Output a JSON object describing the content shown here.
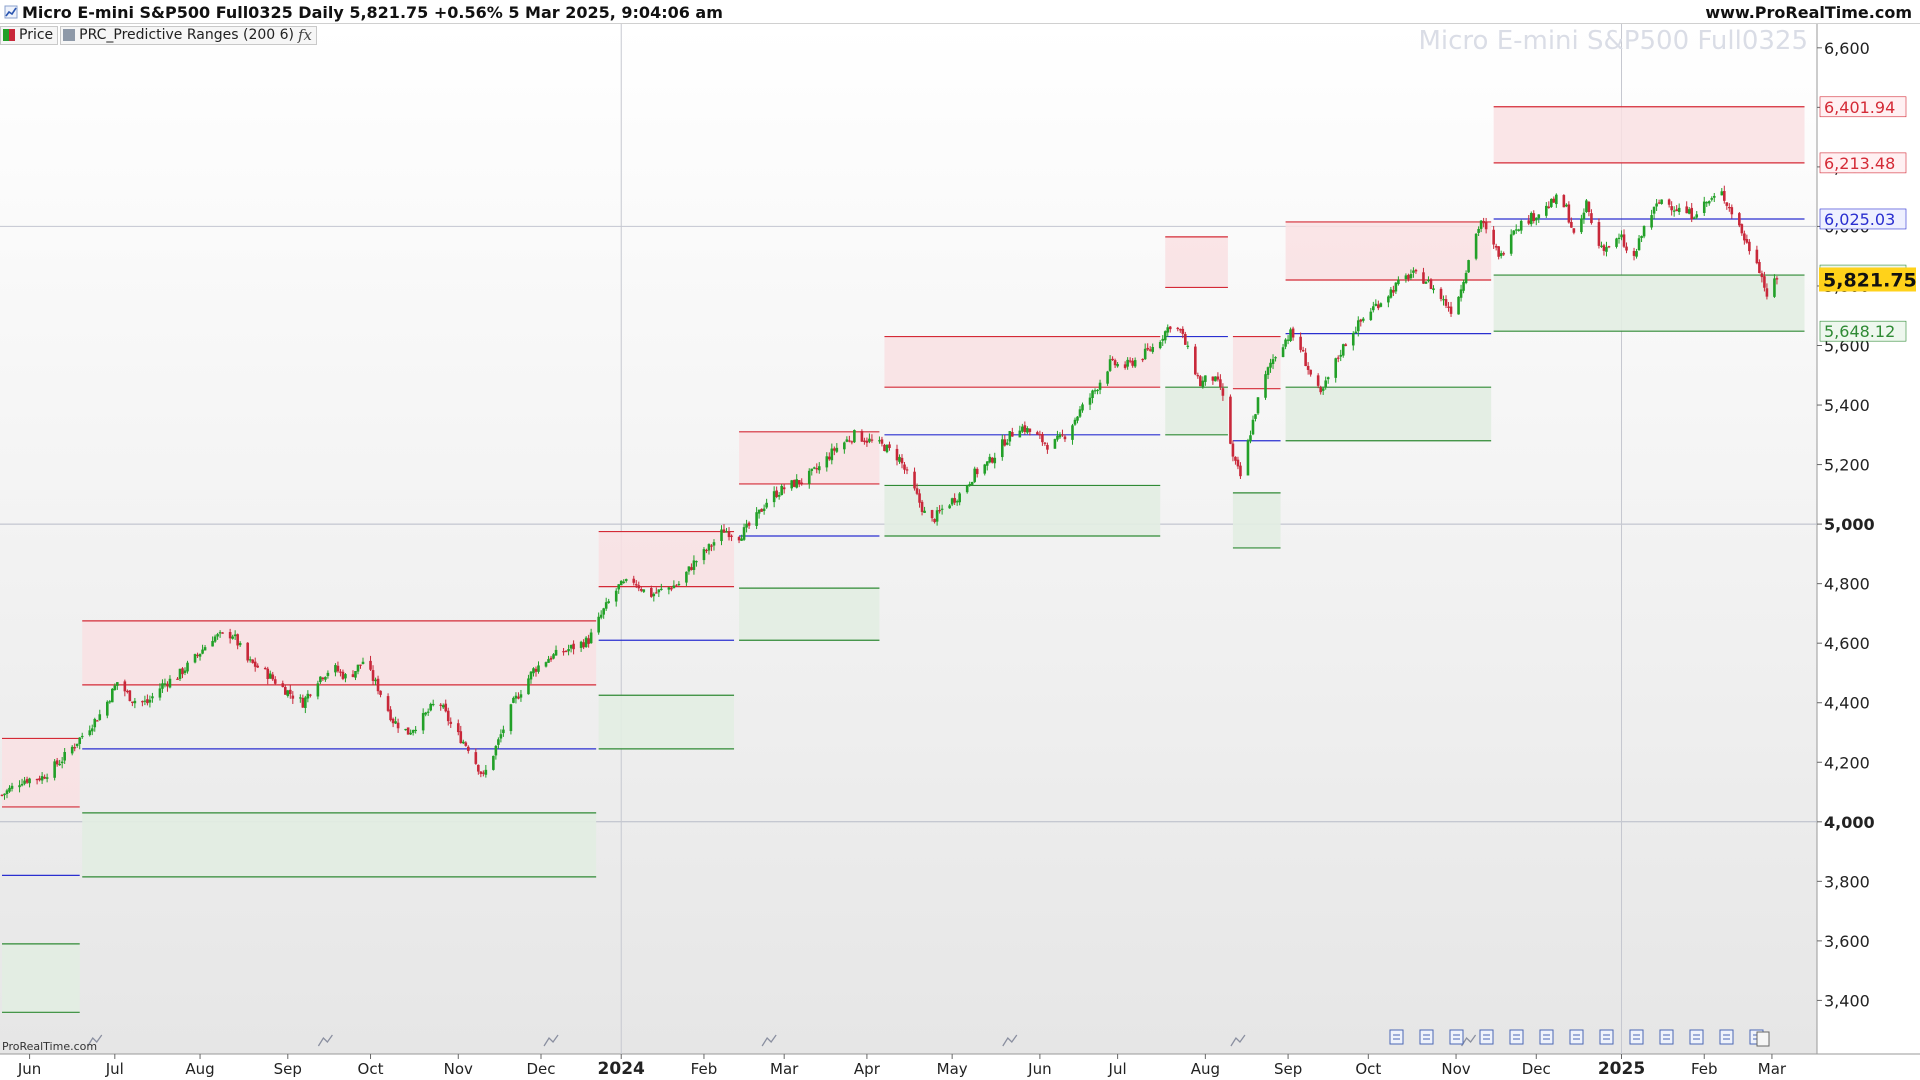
{
  "header": {
    "title": "Micro E-mini S&P500 Full0325 Daily 5,821.75 +0.56% 5 Mar 2025, 9:04:06 am",
    "site": "www.ProRealTime.com"
  },
  "legend": [
    {
      "label": "Price",
      "icon": "price-swatch-icon"
    },
    {
      "label": "PRC_Predictive Ranges (200 6)",
      "icon": "indicator-swatch-icon",
      "fx": "fx"
    }
  ],
  "watermark": "Micro E-mini S&P500 Full0325",
  "logo": "ProRealTime.com",
  "colors": {
    "up": "#22a028",
    "down": "#c8283a",
    "red_zone": "#f9e0e3",
    "green_zone": "#e2ede2",
    "red_line": "#d42a36",
    "green_line": "#2f8a34",
    "blue_line": "#2a2fd0",
    "price_tag": "#ffd21a"
  },
  "chart_data": {
    "type": "candlestick",
    "y_ticks": [
      "3,400",
      "3,600",
      "3,800",
      "4,000",
      "4,200",
      "4,400",
      "4,600",
      "4,800",
      "5,000",
      "5,200",
      "5,400",
      "5,600",
      "5,800",
      "6,000",
      "6,200",
      "6,400",
      "6,600"
    ],
    "y_tick_values": [
      3400,
      3600,
      3800,
      4000,
      4200,
      4400,
      4600,
      4800,
      5000,
      5200,
      5400,
      5600,
      5800,
      6000,
      6200,
      6400,
      6600
    ],
    "bold_ticks": [
      "4,000",
      "5,000"
    ],
    "ylim": [
      3220,
      6680
    ],
    "x_ticks": [
      "Jun",
      "Jul",
      "Aug",
      "Sep",
      "Oct",
      "Nov",
      "Dec",
      "2024",
      "Feb",
      "Mar",
      "Apr",
      "May",
      "Jun",
      "Jul",
      "Aug",
      "Sep",
      "Oct",
      "Nov",
      "Dec",
      "2025",
      "Feb",
      "Mar"
    ],
    "bold_x_ticks": [
      "2024",
      "2025"
    ],
    "x_tick_days": [
      11,
      45,
      79,
      114,
      147,
      182,
      215,
      247,
      280,
      312,
      345,
      379,
      414,
      445,
      480,
      513,
      545,
      580,
      612,
      646,
      679,
      706
    ],
    "x_range": [
      0,
      716
    ],
    "level_tags": [
      {
        "label": "6,401.94",
        "value": 6401.94,
        "kind": "red"
      },
      {
        "label": "6,213.48",
        "value": 6213.48,
        "kind": "red"
      },
      {
        "label": "6,025.03",
        "value": 6025.03,
        "kind": "blue"
      },
      {
        "label": "5,836.58",
        "value": 5836.58,
        "kind": "green"
      },
      {
        "label": "5,648.12",
        "value": 5648.12,
        "kind": "green"
      }
    ],
    "last_price": {
      "label": "5,821.75",
      "value": 5821.75
    },
    "predictive_ranges": [
      {
        "x0": 0,
        "x1": 31,
        "r2": 4280,
        "r1": 4050,
        "avg": 3820,
        "s1": 3590,
        "s2": 3360
      },
      {
        "x0": 32,
        "x1": 237,
        "r2": 4675,
        "r1": 4460,
        "avg": 4245,
        "s1": 4030,
        "s2": 3815
      },
      {
        "x0": 238,
        "x1": 292,
        "r2": 4975,
        "r1": 4790,
        "avg": 4610,
        "s1": 4425,
        "s2": 4245
      },
      {
        "x0": 294,
        "x1": 350,
        "r2": 5310,
        "r1": 5135,
        "avg": 4960,
        "s1": 4785,
        "s2": 4610
      },
      {
        "x0": 352,
        "x1": 462,
        "r2": 5630,
        "r1": 5460,
        "avg": 5300,
        "s1": 5130,
        "s2": 4960
      },
      {
        "x0": 464,
        "x1": 489,
        "r2": 5965,
        "r1": 5795,
        "avg": 5630,
        "s1": 5460,
        "s2": 5300
      },
      {
        "x0": 491,
        "x1": 510,
        "r2": 5630,
        "r1": 5455,
        "avg": 5280,
        "s1": 5105,
        "s2": 4920
      },
      {
        "x0": 512,
        "x1": 594,
        "r2": 6015,
        "r1": 5820,
        "avg": 5640,
        "s1": 5460,
        "s2": 5280
      },
      {
        "x0": 595,
        "x1": 719,
        "r2": 6401.94,
        "r1": 6213.48,
        "avg": 6025.03,
        "s1": 5836.58,
        "s2": 5648.12
      }
    ],
    "close_path": [
      [
        0,
        4090
      ],
      [
        8,
        4140
      ],
      [
        16,
        4150
      ],
      [
        24,
        4210
      ],
      [
        32,
        4290
      ],
      [
        40,
        4370
      ],
      [
        46,
        4470
      ],
      [
        52,
        4410
      ],
      [
        58,
        4400
      ],
      [
        64,
        4460
      ],
      [
        70,
        4490
      ],
      [
        76,
        4540
      ],
      [
        84,
        4620
      ],
      [
        92,
        4630
      ],
      [
        98,
        4540
      ],
      [
        104,
        4510
      ],
      [
        112,
        4450
      ],
      [
        120,
        4400
      ],
      [
        126,
        4480
      ],
      [
        132,
        4520
      ],
      [
        138,
        4480
      ],
      [
        144,
        4540
      ],
      [
        150,
        4450
      ],
      [
        156,
        4340
      ],
      [
        162,
        4300
      ],
      [
        168,
        4350
      ],
      [
        174,
        4410
      ],
      [
        180,
        4310
      ],
      [
        186,
        4250
      ],
      [
        192,
        4150
      ],
      [
        198,
        4270
      ],
      [
        204,
        4400
      ],
      [
        212,
        4510
      ],
      [
        218,
        4550
      ],
      [
        226,
        4580
      ],
      [
        234,
        4610
      ],
      [
        240,
        4710
      ],
      [
        246,
        4790
      ],
      [
        252,
        4810
      ],
      [
        258,
        4760
      ],
      [
        264,
        4780
      ],
      [
        270,
        4800
      ],
      [
        276,
        4870
      ],
      [
        282,
        4920
      ],
      [
        288,
        4980
      ],
      [
        294,
        4960
      ],
      [
        300,
        5010
      ],
      [
        306,
        5090
      ],
      [
        314,
        5130
      ],
      [
        320,
        5150
      ],
      [
        326,
        5190
      ],
      [
        332,
        5250
      ],
      [
        340,
        5300
      ],
      [
        346,
        5280
      ],
      [
        352,
        5260
      ],
      [
        358,
        5220
      ],
      [
        364,
        5110
      ],
      [
        370,
        5000
      ],
      [
        376,
        5060
      ],
      [
        382,
        5100
      ],
      [
        388,
        5170
      ],
      [
        394,
        5210
      ],
      [
        400,
        5280
      ],
      [
        406,
        5330
      ],
      [
        412,
        5300
      ],
      [
        418,
        5260
      ],
      [
        424,
        5300
      ],
      [
        430,
        5380
      ],
      [
        436,
        5450
      ],
      [
        442,
        5540
      ],
      [
        448,
        5530
      ],
      [
        454,
        5560
      ],
      [
        460,
        5600
      ],
      [
        466,
        5670
      ],
      [
        470,
        5650
      ],
      [
        474,
        5560
      ],
      [
        478,
        5470
      ],
      [
        482,
        5500
      ],
      [
        486,
        5460
      ],
      [
        488,
        5380
      ],
      [
        491,
        5220
      ],
      [
        494,
        5160
      ],
      [
        498,
        5310
      ],
      [
        502,
        5450
      ],
      [
        506,
        5540
      ],
      [
        510,
        5600
      ],
      [
        514,
        5640
      ],
      [
        518,
        5590
      ],
      [
        522,
        5500
      ],
      [
        526,
        5430
      ],
      [
        530,
        5510
      ],
      [
        534,
        5580
      ],
      [
        538,
        5640
      ],
      [
        542,
        5680
      ],
      [
        546,
        5720
      ],
      [
        550,
        5750
      ],
      [
        556,
        5800
      ],
      [
        562,
        5840
      ],
      [
        568,
        5820
      ],
      [
        574,
        5760
      ],
      [
        578,
        5720
      ],
      [
        582,
        5790
      ],
      [
        586,
        5930
      ],
      [
        590,
        6020
      ],
      [
        594,
        5940
      ],
      [
        598,
        5900
      ],
      [
        602,
        5990
      ],
      [
        608,
        6020
      ],
      [
        614,
        6050
      ],
      [
        620,
        6090
      ],
      [
        624,
        6060
      ],
      [
        628,
        5940
      ],
      [
        632,
        6080
      ],
      [
        636,
        5940
      ],
      [
        640,
        5930
      ],
      [
        646,
        5960
      ],
      [
        650,
        5870
      ],
      [
        656,
        6020
      ],
      [
        662,
        6090
      ],
      [
        668,
        6060
      ],
      [
        674,
        6040
      ],
      [
        680,
        6080
      ],
      [
        686,
        6110
      ],
      [
        692,
        6020
      ],
      [
        696,
        5940
      ],
      [
        700,
        5890
      ],
      [
        704,
        5770
      ],
      [
        708,
        5821.75
      ]
    ]
  }
}
